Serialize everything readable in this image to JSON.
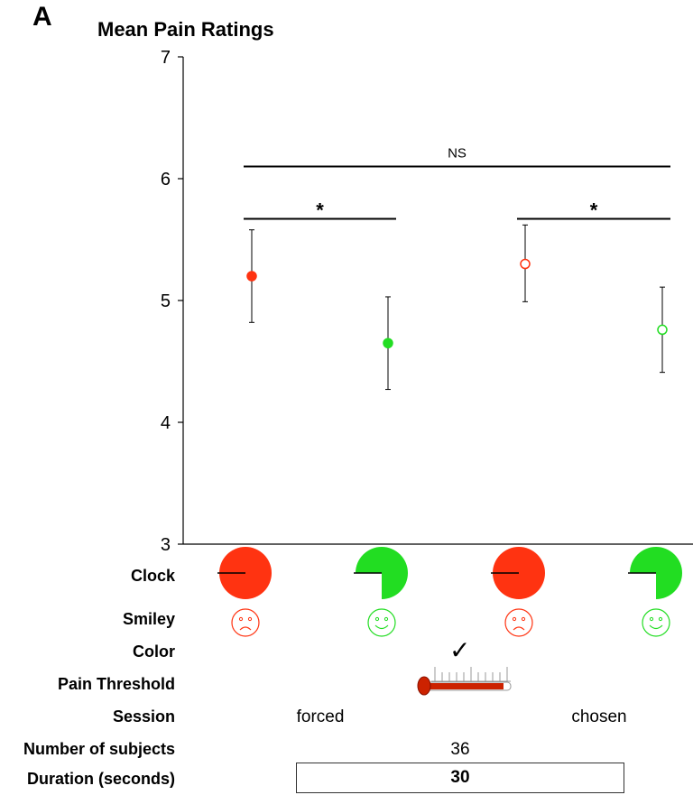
{
  "panel_letter": "A",
  "chart_data": {
    "type": "scatter",
    "title": "Mean Pain Ratings",
    "ylim": [
      3,
      7
    ],
    "yticks": [
      "3",
      "4",
      "5",
      "6",
      "7"
    ],
    "grid": false,
    "points": [
      {
        "value": 5.2,
        "err_low": 4.82,
        "err_high": 5.58,
        "color": "#ff3311",
        "filled": true
      },
      {
        "value": 4.65,
        "err_low": 4.27,
        "err_high": 5.03,
        "color": "#22dd22",
        "filled": true
      },
      {
        "value": 5.3,
        "err_low": 4.99,
        "err_high": 5.62,
        "color": "#ff3311",
        "filled": false
      },
      {
        "value": 4.76,
        "err_low": 4.41,
        "err_high": 5.11,
        "color": "#22dd22",
        "filled": false
      }
    ],
    "comparisons": [
      {
        "from": 0,
        "to": 3,
        "level": 6.1,
        "label": "NS"
      },
      {
        "from": 0,
        "to": 1,
        "level": 5.67,
        "label": "*"
      },
      {
        "from": 2,
        "to": 3,
        "level": 5.67,
        "label": "*"
      }
    ]
  },
  "rows": {
    "clock": {
      "label": "Clock",
      "icons": [
        "clock-full-red-icon",
        "clock-partial-green-icon",
        "clock-full-red-icon",
        "clock-partial-green-icon"
      ]
    },
    "smiley": {
      "label": "Smiley",
      "icons": [
        "sad-face-icon",
        "happy-face-icon",
        "sad-face-icon",
        "happy-face-icon"
      ]
    },
    "color": {
      "label": "Color",
      "mark": "✓"
    },
    "pain_threshold": {
      "label": "Pain Threshold",
      "icon": "thermometer-icon"
    },
    "session": {
      "label": "Session",
      "forced": "forced",
      "chosen": "chosen"
    },
    "subjects": {
      "label": "Number of subjects",
      "value": "36"
    },
    "duration": {
      "label": "Duration (seconds)",
      "value": "30"
    }
  },
  "colors": {
    "red": "#ff3311",
    "green": "#22dd22",
    "thermometer": "#cc2200"
  }
}
